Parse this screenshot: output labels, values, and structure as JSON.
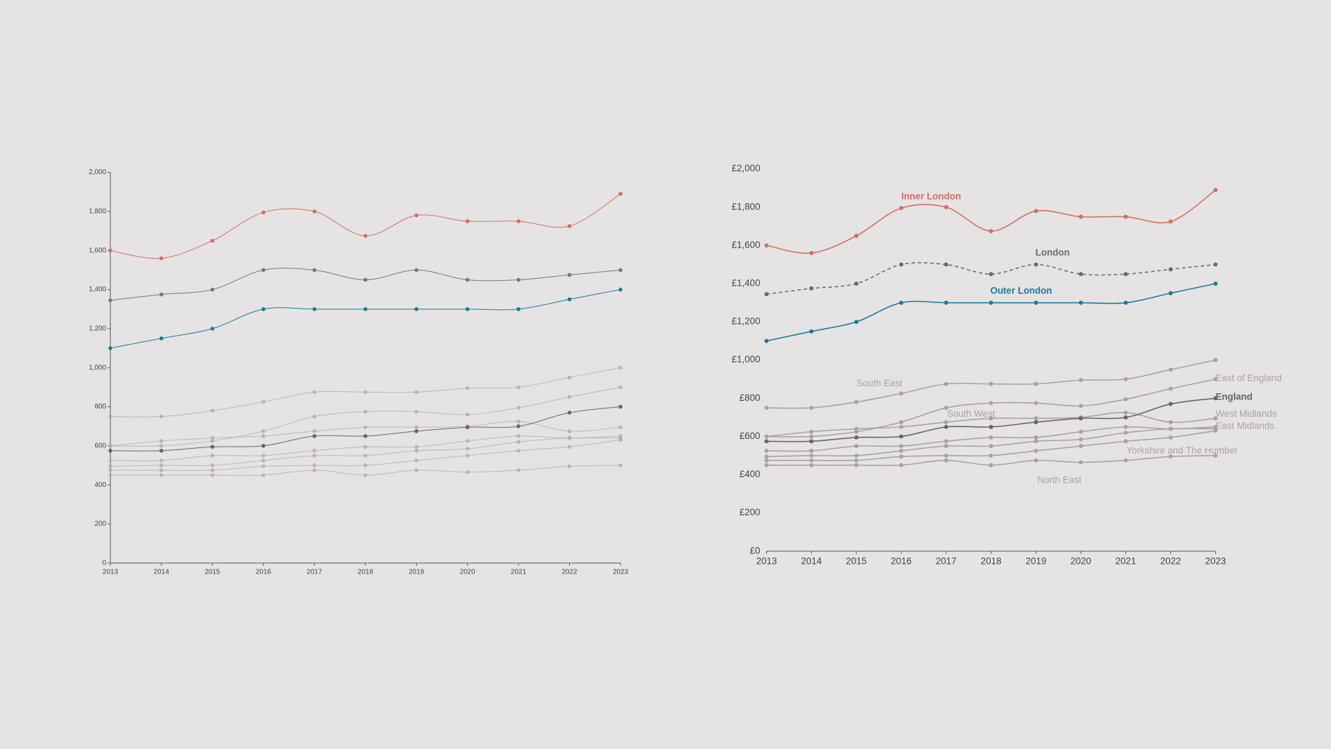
{
  "chart_data": [
    {
      "type": "line",
      "x": [
        2013,
        2014,
        2015,
        2016,
        2017,
        2018,
        2019,
        2020,
        2021,
        2022,
        2023
      ],
      "xlim": [
        2013,
        2023
      ],
      "xticks": [
        2013,
        2014,
        2015,
        2016,
        2017,
        2018,
        2019,
        2020,
        2021,
        2022,
        2023
      ],
      "ylim": [
        0,
        2000
      ],
      "yticks": [
        0,
        200,
        400,
        600,
        800,
        {
          "value": 1000,
          "label": "1,000"
        },
        {
          "value": 1200,
          "label": "1,200"
        },
        {
          "value": 1400,
          "label": "1,400"
        },
        {
          "value": 1600,
          "label": "1,600"
        },
        {
          "value": 1800,
          "label": "1,800"
        },
        {
          "value": 2000,
          "label": "2,000"
        }
      ],
      "series": [
        {
          "color": "#d0705f",
          "values": [
            1600,
            1560,
            1650,
            1795,
            1800,
            1675,
            1780,
            1750,
            1750,
            1725,
            1890
          ]
        },
        {
          "color": "#7a7576",
          "values": [
            1345,
            1375,
            1400,
            1500,
            1500,
            1450,
            1500,
            1450,
            1450,
            1475,
            1500
          ]
        },
        {
          "color": "#1a7a9b",
          "values": [
            1100,
            1150,
            1200,
            1300,
            1300,
            1300,
            1300,
            1300,
            1300,
            1350,
            1400
          ]
        },
        {
          "color": "#b3abad",
          "values": [
            750,
            750,
            780,
            825,
            875,
            875,
            875,
            895,
            900,
            950,
            1000
          ]
        },
        {
          "color": "#b3abad",
          "values": [
            600,
            600,
            625,
            675,
            750,
            775,
            775,
            760,
            795,
            850,
            900
          ]
        },
        {
          "color": "#6a6465",
          "values": [
            575,
            575,
            595,
            600,
            650,
            650,
            675,
            695,
            700,
            770,
            800
          ]
        },
        {
          "color": "#b3abad",
          "values": [
            600,
            625,
            640,
            650,
            675,
            695,
            695,
            700,
            725,
            675,
            695
          ]
        },
        {
          "color": "#b3abad",
          "values": [
            525,
            525,
            550,
            550,
            575,
            595,
            595,
            625,
            650,
            640,
            650
          ]
        },
        {
          "color": "#b3abad",
          "values": [
            495,
            500,
            500,
            525,
            550,
            550,
            575,
            585,
            620,
            640,
            640
          ]
        },
        {
          "color": "#b3abad",
          "values": [
            475,
            475,
            475,
            495,
            500,
            500,
            525,
            550,
            575,
            595,
            630
          ]
        },
        {
          "color": "#b3abad",
          "values": [
            450,
            450,
            450,
            450,
            475,
            450,
            475,
            465,
            475,
            495,
            500
          ]
        }
      ]
    },
    {
      "type": "line",
      "x": [
        2013,
        2014,
        2015,
        2016,
        2017,
        2018,
        2019,
        2020,
        2021,
        2022,
        2023
      ],
      "xlim": [
        2013,
        2023
      ],
      "xticks": [
        2013,
        2014,
        2015,
        2016,
        2017,
        2018,
        2019,
        2020,
        2021,
        2022,
        2023
      ],
      "ylim": [
        0,
        2000
      ],
      "yticks": [
        {
          "value": 0,
          "label": "£0"
        },
        {
          "value": 200,
          "label": "£200"
        },
        {
          "value": 400,
          "label": "£400"
        },
        {
          "value": 600,
          "label": "£600"
        },
        {
          "value": 800,
          "label": "£800"
        },
        {
          "value": 1000,
          "label": "£1,000"
        },
        {
          "value": 1200,
          "label": "£1,200"
        },
        {
          "value": 1400,
          "label": "£1,400"
        },
        {
          "value": 1600,
          "label": "£1,600"
        },
        {
          "value": 1800,
          "label": "£1,800"
        },
        {
          "value": 2000,
          "label": "£2,000"
        }
      ],
      "series": [
        {
          "name": "Inner London",
          "color": "#d0705f",
          "values": [
            1600,
            1560,
            1650,
            1795,
            1800,
            1675,
            1780,
            1750,
            1750,
            1725,
            1890
          ]
        },
        {
          "name": "London",
          "color": "#6e6a6b",
          "line_style": "dashed",
          "values": [
            1345,
            1375,
            1400,
            1500,
            1500,
            1450,
            1500,
            1450,
            1450,
            1475,
            1500
          ]
        },
        {
          "name": "Outer London",
          "color": "#1a7a9b",
          "values": [
            1100,
            1150,
            1200,
            1300,
            1300,
            1300,
            1300,
            1300,
            1300,
            1350,
            1400
          ]
        },
        {
          "name": "South East",
          "color": "#aaa1a3",
          "values": [
            750,
            750,
            780,
            825,
            875,
            875,
            875,
            895,
            900,
            950,
            1000
          ]
        },
        {
          "name": "East of England",
          "color": "#aaa1a3",
          "values": [
            600,
            600,
            625,
            675,
            750,
            775,
            775,
            760,
            795,
            850,
            900
          ]
        },
        {
          "name": "England",
          "color": "#6a6465",
          "values": [
            575,
            575,
            595,
            600,
            650,
            650,
            675,
            695,
            700,
            770,
            800
          ]
        },
        {
          "name": "South West",
          "color": "#aaa1a3",
          "values": [
            600,
            625,
            640,
            650,
            675,
            695,
            695,
            700,
            725,
            675,
            695
          ]
        },
        {
          "name": "West Midlands",
          "color": "#aaa1a3",
          "values": [
            525,
            525,
            550,
            550,
            575,
            595,
            595,
            625,
            650,
            640,
            650
          ]
        },
        {
          "name": "East Midlands",
          "color": "#aaa1a3",
          "values": [
            495,
            500,
            500,
            525,
            550,
            550,
            575,
            585,
            620,
            640,
            640
          ]
        },
        {
          "name": "Yorkshire and The Humber",
          "color": "#aaa1a3",
          "values": [
            475,
            475,
            475,
            495,
            500,
            500,
            525,
            550,
            575,
            595,
            630
          ]
        },
        {
          "name": "North East",
          "color": "#aaa1a3",
          "values": [
            450,
            450,
            450,
            450,
            475,
            450,
            475,
            465,
            475,
            495,
            500
          ]
        }
      ]
    }
  ]
}
